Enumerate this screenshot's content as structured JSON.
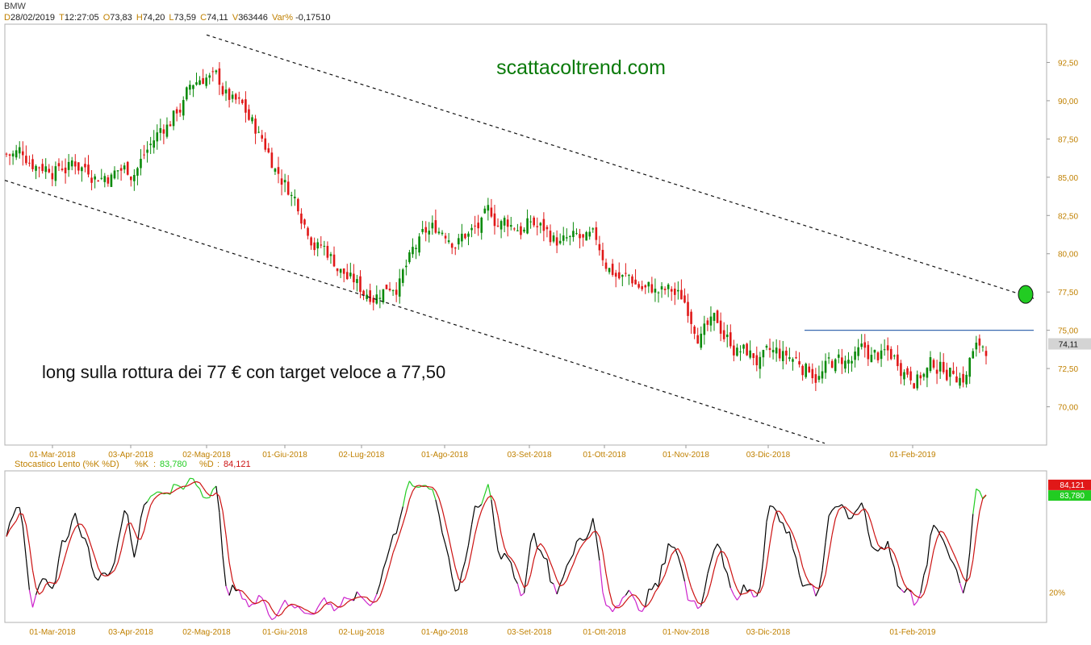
{
  "header": {
    "symbol": "BMW",
    "fields": [
      {
        "k": "D",
        "v": "28/02/2019"
      },
      {
        "k": "T",
        "v": "12:27:05"
      },
      {
        "k": "O",
        "v": "73,83"
      },
      {
        "k": "H",
        "v": "74,20"
      },
      {
        "k": "L",
        "v": "73,59"
      },
      {
        "k": "C",
        "v": "74,11"
      },
      {
        "k": "V",
        "v": "363446"
      },
      {
        "k": "Var%",
        "v": "-0,17510"
      }
    ]
  },
  "colors": {
    "up": "#0a8a0a",
    "down": "#e01818",
    "resistance": "#3a6ab0",
    "target_marker": "#22cc22",
    "stoch_k": "#000000",
    "stoch_d": "#cc1111",
    "stoch_overbought": "#22cc22",
    "stoch_oversold": "#cc22cc",
    "axis_label": "#c08000",
    "watermark": "#0a7a0a"
  },
  "chart_data": [
    {
      "type": "candlestick",
      "watermark": "scattacoltrend.com",
      "annotation": "long sulla rottura dei 77 € con target veloce a 77,50",
      "x_labels": [
        "01-Mar-2018",
        "03-Apr-2018",
        "02-Mag-2018",
        "01-Giu-2018",
        "02-Lug-2018",
        "01-Ago-2018",
        "03-Set-2018",
        "01-Ott-2018",
        "01-Nov-2018",
        "03-Dic-2018",
        "01-Feb-2019"
      ],
      "y_ticks": [
        "70,00",
        "72,50",
        "75,00",
        "77,50",
        "80,00",
        "82,50",
        "85,00",
        "87,50",
        "90,00",
        "92,50"
      ],
      "ylim": [
        67.5,
        95.0
      ],
      "last_price_label": "74,11",
      "resistance_level": 75.0,
      "target_level": 77.5,
      "upper_trendline": {
        "from": [
          "02-Mag-2018",
          94.3
        ],
        "to": [
          "01-Feb-2019",
          79.6
        ]
      },
      "lower_trendline": {
        "from": [
          "01-Mar-2018",
          83.8
        ],
        "to": [
          "03-Dic-2018",
          68.8
        ]
      },
      "close_path": [
        [
          "01-Mar-2018",
          86.5
        ],
        [
          "03-Apr-2018",
          85.8
        ],
        [
          "02-Mag-2018",
          92.0
        ],
        [
          "01-Giu-2018",
          85.0
        ],
        [
          "02-Lug-2018",
          77.5
        ],
        [
          "01-Ago-2018",
          81.5
        ],
        [
          "03-Set-2018",
          82.0
        ],
        [
          "01-Ott-2018",
          79.0
        ],
        [
          "01-Nov-2018",
          76.5
        ],
        [
          "03-Dic-2018",
          72.5
        ],
        [
          "01-Feb-2019",
          72.8
        ]
      ]
    },
    {
      "type": "line",
      "name": "Stocastico Lento (%K %D)",
      "series": [
        {
          "name": "%K",
          "last": "83,780"
        },
        {
          "name": "%D",
          "last": "84,121"
        }
      ],
      "y_tick": "20%",
      "ylim": [
        0,
        100
      ],
      "x_labels": [
        "01-Mar-2018",
        "03-Apr-2018",
        "02-Mag-2018",
        "01-Giu-2018",
        "02-Lug-2018",
        "01-Ago-2018",
        "03-Set-2018",
        "01-Ott-2018",
        "01-Nov-2018",
        "03-Dic-2018",
        "01-Feb-2019"
      ]
    }
  ]
}
